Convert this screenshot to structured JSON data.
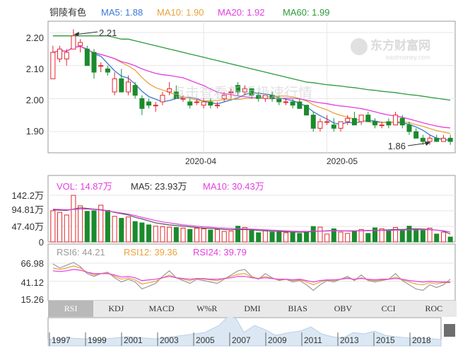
{
  "stock": {
    "name": "铜陵有色",
    "ma_legend": [
      {
        "label": "MA5: 1.88",
        "color": "#3a79d8"
      },
      {
        "label": "MA10: 1.90",
        "color": "#e8a33a"
      },
      {
        "label": "MA20: 1.92",
        "color": "#e43ee0"
      },
      {
        "label": "MA60: 1.99",
        "color": "#2a9a3b"
      }
    ]
  },
  "watermark": {
    "logo_text": "东方财富网",
    "logo_sub": "eastmoney.com",
    "overlay_text": "点击查看新版极速行情"
  },
  "price_panel": {
    "yticks": [
      "2.20",
      "2.10",
      "2.00",
      "1.90"
    ],
    "xticks": [
      "2020-04",
      "2020-05"
    ],
    "high_marker": "2.21",
    "low_marker": "1.86"
  },
  "volume_panel": {
    "legend": [
      {
        "label": "VOL: 14.87万",
        "color": "#e43ee0"
      },
      {
        "label": "MA5: 23.93万",
        "color": "#333333"
      },
      {
        "label": "MA10: 30.43万",
        "color": "#e43ee0"
      }
    ],
    "yticks": [
      "142.2万",
      "94.81万",
      "47.40万",
      "0"
    ]
  },
  "rsi_panel": {
    "legend": [
      {
        "label": "RSI6: 44.21",
        "color": "#9a9a9a"
      },
      {
        "label": "RSI12: 39.36",
        "color": "#e8a33a"
      },
      {
        "label": "RSI24: 39.79",
        "color": "#e43ee0"
      }
    ],
    "yticks": [
      "66.98",
      "41.12",
      "15.26"
    ]
  },
  "tabs": [
    "RSI",
    "KDJ",
    "MACD",
    "W%R",
    "DMI",
    "BIAS",
    "OBV",
    "CCI",
    "ROC"
  ],
  "active_tab": "RSI",
  "overview": {
    "years": [
      "1997",
      "1999",
      "2001",
      "2003",
      "2005",
      "2007",
      "2009",
      "2011",
      "2013",
      "2015",
      "2018"
    ]
  },
  "colors": {
    "up": "#e3262c",
    "down": "#1a8b2c",
    "grid": "#e6e6e6",
    "axis": "#333333"
  },
  "chart_data": [
    {
      "type": "candlestick",
      "title": "铜陵有色",
      "xlabel": "",
      "ylabel": "",
      "ylim": [
        1.84,
        2.23
      ],
      "date_ticks": [
        {
          "label": "2020-04",
          "index": 22
        },
        {
          "label": "2020-05",
          "index": 40
        }
      ],
      "candles": [
        {
          "o": 2.06,
          "h": 2.16,
          "l": 2.06,
          "c": 2.14
        },
        {
          "o": 2.12,
          "h": 2.16,
          "l": 2.11,
          "c": 2.15
        },
        {
          "o": 2.12,
          "h": 2.15,
          "l": 2.1,
          "c": 2.14
        },
        {
          "o": 2.15,
          "h": 2.21,
          "l": 2.15,
          "c": 2.19
        },
        {
          "o": 2.16,
          "h": 2.18,
          "l": 2.14,
          "c": 2.17
        },
        {
          "o": 2.15,
          "h": 2.16,
          "l": 2.1,
          "c": 2.1
        },
        {
          "o": 2.14,
          "h": 2.15,
          "l": 2.06,
          "c": 2.08
        },
        {
          "o": 2.1,
          "h": 2.11,
          "l": 2.08,
          "c": 2.1
        },
        {
          "o": 2.09,
          "h": 2.1,
          "l": 2.07,
          "c": 2.08
        },
        {
          "o": 2.02,
          "h": 2.08,
          "l": 2.01,
          "c": 2.06
        },
        {
          "o": 2.06,
          "h": 2.09,
          "l": 2.02,
          "c": 2.02
        },
        {
          "o": 2.02,
          "h": 2.07,
          "l": 2.01,
          "c": 2.05
        },
        {
          "o": 2.04,
          "h": 2.05,
          "l": 2.0,
          "c": 2.01
        },
        {
          "o": 2.0,
          "h": 2.01,
          "l": 1.95,
          "c": 1.97
        },
        {
          "o": 1.99,
          "h": 2.0,
          "l": 1.97,
          "c": 1.98
        },
        {
          "o": 1.98,
          "h": 1.99,
          "l": 1.96,
          "c": 1.98
        },
        {
          "o": 1.99,
          "h": 2.02,
          "l": 1.98,
          "c": 2.01
        },
        {
          "o": 2.02,
          "h": 2.05,
          "l": 2.01,
          "c": 2.03
        },
        {
          "o": 2.02,
          "h": 2.04,
          "l": 2.0,
          "c": 2.0
        },
        {
          "o": 2.0,
          "h": 2.01,
          "l": 1.99,
          "c": 2.0
        },
        {
          "o": 1.99,
          "h": 2.0,
          "l": 1.97,
          "c": 1.98
        },
        {
          "o": 1.99,
          "h": 2.0,
          "l": 1.98,
          "c": 1.99
        },
        {
          "o": 1.98,
          "h": 2.0,
          "l": 1.97,
          "c": 1.99
        },
        {
          "o": 1.99,
          "h": 2.0,
          "l": 1.97,
          "c": 1.98
        },
        {
          "o": 1.98,
          "h": 1.99,
          "l": 1.97,
          "c": 1.98
        },
        {
          "o": 2.0,
          "h": 2.02,
          "l": 1.99,
          "c": 2.01
        },
        {
          "o": 2.02,
          "h": 2.03,
          "l": 2.0,
          "c": 2.02
        },
        {
          "o": 2.04,
          "h": 2.05,
          "l": 2.01,
          "c": 2.02
        },
        {
          "o": 2.02,
          "h": 2.04,
          "l": 2.01,
          "c": 2.03
        },
        {
          "o": 2.03,
          "h": 2.03,
          "l": 2.0,
          "c": 2.01
        },
        {
          "o": 2.01,
          "h": 2.02,
          "l": 1.99,
          "c": 2.0
        },
        {
          "o": 2.0,
          "h": 2.01,
          "l": 1.99,
          "c": 2.01
        },
        {
          "o": 2.01,
          "h": 2.02,
          "l": 1.99,
          "c": 2.0
        },
        {
          "o": 2.0,
          "h": 2.01,
          "l": 1.98,
          "c": 1.99
        },
        {
          "o": 1.99,
          "h": 2.0,
          "l": 1.98,
          "c": 1.99
        },
        {
          "o": 1.99,
          "h": 2.0,
          "l": 1.97,
          "c": 1.98
        },
        {
          "o": 1.99,
          "h": 2.0,
          "l": 1.97,
          "c": 1.97
        },
        {
          "o": 1.98,
          "h": 1.98,
          "l": 1.95,
          "c": 1.95
        },
        {
          "o": 1.95,
          "h": 1.96,
          "l": 1.9,
          "c": 1.91
        },
        {
          "o": 1.91,
          "h": 1.94,
          "l": 1.9,
          "c": 1.93
        },
        {
          "o": 1.93,
          "h": 1.95,
          "l": 1.92,
          "c": 1.93
        },
        {
          "o": 1.92,
          "h": 1.94,
          "l": 1.9,
          "c": 1.91
        },
        {
          "o": 1.91,
          "h": 1.93,
          "l": 1.9,
          "c": 1.93
        },
        {
          "o": 1.93,
          "h": 1.95,
          "l": 1.92,
          "c": 1.94
        },
        {
          "o": 1.94,
          "h": 1.96,
          "l": 1.92,
          "c": 1.92
        },
        {
          "o": 1.93,
          "h": 1.95,
          "l": 1.92,
          "c": 1.95
        },
        {
          "o": 1.95,
          "h": 1.96,
          "l": 1.93,
          "c": 1.93
        },
        {
          "o": 1.93,
          "h": 1.94,
          "l": 1.91,
          "c": 1.92
        },
        {
          "o": 1.92,
          "h": 1.93,
          "l": 1.91,
          "c": 1.92
        },
        {
          "o": 1.93,
          "h": 1.94,
          "l": 1.91,
          "c": 1.92
        },
        {
          "o": 1.92,
          "h": 1.96,
          "l": 1.92,
          "c": 1.95
        },
        {
          "o": 1.94,
          "h": 1.95,
          "l": 1.91,
          "c": 1.92
        },
        {
          "o": 1.92,
          "h": 1.93,
          "l": 1.89,
          "c": 1.9
        },
        {
          "o": 1.9,
          "h": 1.91,
          "l": 1.88,
          "c": 1.88
        },
        {
          "o": 1.88,
          "h": 1.89,
          "l": 1.86,
          "c": 1.87
        },
        {
          "o": 1.87,
          "h": 1.89,
          "l": 1.86,
          "c": 1.88
        },
        {
          "o": 1.88,
          "h": 1.89,
          "l": 1.87,
          "c": 1.87
        },
        {
          "o": 1.87,
          "h": 1.89,
          "l": 1.87,
          "c": 1.88
        },
        {
          "o": 1.88,
          "h": 1.89,
          "l": 1.86,
          "c": 1.87
        }
      ],
      "ma60": [
        2.19,
        2.19,
        2.19,
        2.19,
        2.19,
        2.19,
        2.19,
        2.19,
        2.19,
        2.185,
        2.18,
        2.18,
        2.175,
        2.17,
        2.165,
        2.16,
        2.155,
        2.15,
        2.145,
        2.14,
        2.135,
        2.13,
        2.125,
        2.12,
        2.115,
        2.11,
        2.105,
        2.1,
        2.095,
        2.09,
        2.085,
        2.08,
        2.075,
        2.07,
        2.065,
        2.06,
        2.055,
        2.05,
        2.048,
        2.045,
        2.042,
        2.04,
        2.038,
        2.035,
        2.033,
        2.03,
        2.027,
        2.025,
        2.022,
        2.02,
        2.018,
        2.015,
        2.012,
        2.01,
        2.007,
        2.004,
        2.001,
        1.998,
        1.995
      ]
    },
    {
      "type": "bar",
      "title": "VOL",
      "ylim": [
        0,
        142.2
      ],
      "unit": "万",
      "values": [
        95,
        90,
        82,
        142,
        110,
        93,
        95,
        112,
        96,
        78,
        72,
        76,
        62,
        58,
        52,
        48,
        46,
        45,
        44,
        42,
        38,
        42,
        40,
        36,
        38,
        32,
        33,
        48,
        44,
        35,
        28,
        34,
        30,
        31,
        28,
        30,
        26,
        30,
        47,
        45,
        24,
        40,
        30,
        26,
        34,
        38,
        26,
        43,
        40,
        34,
        44,
        36,
        48,
        38,
        35,
        42,
        24,
        30,
        15
      ],
      "ma5": [
        98,
        97,
        96,
        100,
        104,
        102,
        100,
        98,
        95,
        90,
        86,
        82,
        75,
        70,
        64,
        58,
        55,
        52,
        50,
        48,
        46,
        44,
        42,
        41,
        40,
        38,
        37,
        38,
        38,
        37,
        35,
        34,
        33,
        32,
        31,
        30,
        30,
        30,
        32,
        33,
        34,
        35,
        34,
        33,
        33,
        34,
        35,
        35,
        36,
        37,
        38,
        38,
        39,
        40,
        39,
        38,
        36,
        33,
        24
      ],
      "ma10": [
        100,
        99,
        98,
        99,
        100,
        100,
        99,
        97,
        94,
        91,
        88,
        85,
        80,
        75,
        70,
        65,
        61,
        58,
        55,
        52,
        50,
        48,
        46,
        45,
        43,
        42,
        41,
        40,
        40,
        39,
        38,
        37,
        36,
        35,
        34,
        33,
        32,
        32,
        33,
        33,
        33,
        34,
        34,
        34,
        34,
        34,
        34,
        35,
        35,
        35,
        36,
        36,
        37,
        37,
        37,
        37,
        36,
        34,
        30
      ]
    },
    {
      "type": "line",
      "title": "RSI",
      "ylim": [
        15.26,
        66.98
      ],
      "series": [
        {
          "name": "RSI6",
          "color": "#9a9a9a",
          "values": [
            66,
            60,
            64,
            68,
            62,
            52,
            48,
            52,
            54,
            46,
            40,
            44,
            40,
            30,
            34,
            38,
            48,
            56,
            46,
            42,
            38,
            44,
            42,
            40,
            38,
            44,
            50,
            56,
            58,
            48,
            44,
            52,
            46,
            42,
            44,
            40,
            42,
            36,
            28,
            36,
            42,
            40,
            44,
            48,
            42,
            50,
            42,
            40,
            42,
            44,
            52,
            42,
            36,
            30,
            28,
            36,
            32,
            36,
            44
          ]
        },
        {
          "name": "RSI12",
          "color": "#e8a33a",
          "values": [
            60,
            58,
            60,
            63,
            60,
            54,
            50,
            52,
            53,
            48,
            44,
            46,
            43,
            37,
            39,
            41,
            46,
            50,
            46,
            44,
            42,
            45,
            44,
            43,
            42,
            45,
            48,
            51,
            52,
            47,
            45,
            48,
            45,
            43,
            44,
            42,
            43,
            40,
            36,
            40,
            43,
            42,
            44,
            46,
            43,
            46,
            43,
            42,
            43,
            44,
            47,
            43,
            40,
            37,
            36,
            39,
            37,
            39,
            39
          ]
        },
        {
          "name": "RSI24",
          "color": "#e43ee0",
          "values": [
            56,
            55,
            56,
            58,
            57,
            54,
            52,
            52,
            52,
            50,
            47,
            48,
            46,
            42,
            43,
            44,
            46,
            48,
            46,
            45,
            44,
            45,
            45,
            44,
            44,
            45,
            46,
            48,
            48,
            46,
            45,
            46,
            45,
            44,
            44,
            43,
            44,
            42,
            40,
            42,
            43,
            43,
            44,
            45,
            44,
            45,
            44,
            43,
            44,
            44,
            45,
            44,
            42,
            41,
            40,
            41,
            40,
            40,
            40
          ]
        }
      ]
    }
  ]
}
